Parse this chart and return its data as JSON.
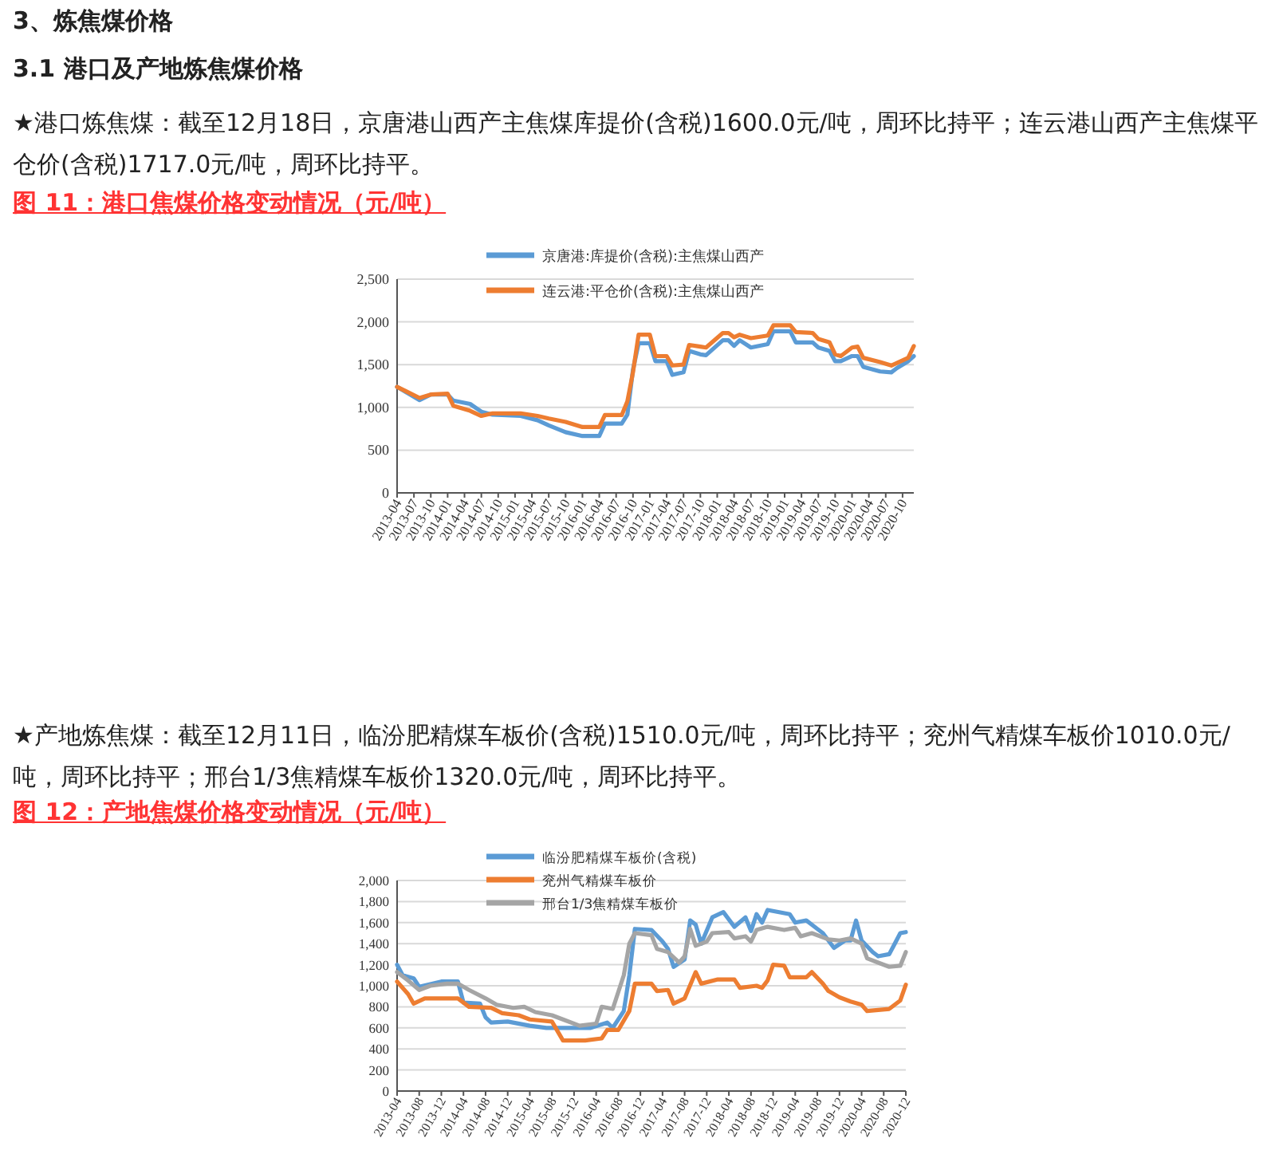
{
  "chart_data": [
    {
      "type": "line",
      "title": "图 11：港口焦煤价格变动情况（元/吨）",
      "annotations": [
        "3、炼焦煤价格",
        "3.1 港口及产地炼焦煤价格",
        "★港口炼焦煤：截至12月18日，京唐港山西产主焦煤库提价(含税)1600.0元/吨，周环比持平；连云港山西产主焦煤平仓价(含税)1717.0元/吨，周环比持平。"
      ],
      "xlim": [
        "2013-04",
        "2020-12"
      ],
      "xticks": [
        "2013-04",
        "2013-07",
        "2013-10",
        "2014-01",
        "2014-04",
        "2014-07",
        "2014-10",
        "2015-01",
        "2015-04",
        "2015-07",
        "2015-10",
        "2016-01",
        "2016-04",
        "2016-07",
        "2016-10",
        "2017-01",
        "2017-04",
        "2017-07",
        "2017-10",
        "2018-01",
        "2018-04",
        "2018-07",
        "2018-10",
        "2019-01",
        "2019-04",
        "2019-07",
        "2019-10",
        "2020-01",
        "2020-04",
        "2020-07",
        "2020-10"
      ],
      "ylim": [
        0,
        2500
      ],
      "yticks": [
        {
          "value": 0,
          "label": "0"
        },
        {
          "value": 500,
          "label": "500"
        },
        {
          "value": 1000,
          "label": "1,000"
        },
        {
          "value": 1500,
          "label": "1,500"
        },
        {
          "value": 2000,
          "label": "2,000"
        },
        {
          "value": 2500,
          "label": "2,500"
        }
      ],
      "grid": "y",
      "legend": "top",
      "series": [
        {
          "name": "京唐港:库提价(含税):主焦煤山西产",
          "color": "#5b9bd5",
          "x": [
            "2013-04",
            "2013-08",
            "2013-10",
            "2014-01",
            "2014-02",
            "2014-05",
            "2014-07",
            "2014-09",
            "2015-02",
            "2015-05",
            "2015-07",
            "2015-10",
            "2016-01",
            "2016-04",
            "2016-05",
            "2016-08",
            "2016-09",
            "2016-10",
            "2016-11",
            "2017-01",
            "2017-02",
            "2017-04",
            "2017-05",
            "2017-07",
            "2017-08",
            "2017-10",
            "2017-11",
            "2018-02",
            "2018-03",
            "2018-04",
            "2018-05",
            "2018-07",
            "2018-10",
            "2018-11",
            "2019-02",
            "2019-03",
            "2019-06",
            "2019-07",
            "2019-09",
            "2019-10",
            "2019-11",
            "2020-01",
            "2020-02",
            "2020-03",
            "2020-06",
            "2020-08",
            "2020-09",
            "2020-11",
            "2020-12"
          ],
          "values": [
            1240,
            1085,
            1150,
            1150,
            1080,
            1040,
            950,
            915,
            900,
            850,
            790,
            710,
            665,
            665,
            810,
            810,
            915,
            1440,
            1750,
            1750,
            1540,
            1540,
            1380,
            1410,
            1660,
            1620,
            1610,
            1785,
            1785,
            1720,
            1785,
            1700,
            1740,
            1890,
            1890,
            1760,
            1760,
            1700,
            1660,
            1540,
            1540,
            1600,
            1600,
            1475,
            1420,
            1410,
            1460,
            1540,
            1600
          ]
        },
        {
          "name": "连云港:平仓价(含税):主焦煤山西产",
          "color": "#ed7d31",
          "x": [
            "2013-04",
            "2013-08",
            "2013-10",
            "2014-01",
            "2014-02",
            "2014-05",
            "2014-07",
            "2014-09",
            "2015-02",
            "2015-05",
            "2015-07",
            "2015-10",
            "2016-01",
            "2016-04",
            "2016-05",
            "2016-08",
            "2016-09",
            "2016-10",
            "2016-11",
            "2017-01",
            "2017-02",
            "2017-04",
            "2017-05",
            "2017-07",
            "2017-08",
            "2017-10",
            "2017-11",
            "2018-02",
            "2018-03",
            "2018-04",
            "2018-05",
            "2018-07",
            "2018-10",
            "2018-11",
            "2019-02",
            "2019-03",
            "2019-06",
            "2019-07",
            "2019-09",
            "2019-10",
            "2019-11",
            "2020-01",
            "2020-02",
            "2020-03",
            "2020-06",
            "2020-08",
            "2020-09",
            "2020-11",
            "2020-12"
          ],
          "values": [
            1240,
            1110,
            1150,
            1160,
            1020,
            960,
            900,
            930,
            930,
            900,
            870,
            830,
            770,
            770,
            910,
            910,
            1070,
            1410,
            1850,
            1850,
            1600,
            1600,
            1490,
            1500,
            1730,
            1710,
            1700,
            1870,
            1870,
            1820,
            1850,
            1810,
            1840,
            1960,
            1960,
            1880,
            1870,
            1800,
            1760,
            1620,
            1600,
            1700,
            1710,
            1580,
            1530,
            1490,
            1520,
            1580,
            1717
          ]
        }
      ]
    },
    {
      "type": "line",
      "title": "图 12：产地焦煤价格变动情况（元/吨）",
      "annotations": [
        "★产地炼焦煤：截至12月11日，临汾肥精煤车板价(含税)1510.0元/吨，周环比持平；兖州气精煤车板价1010.0元/吨，周环比持平；邢台1/3焦精煤车板价1320.0元/吨，周环比持平。"
      ],
      "xlim": [
        "2013-04",
        "2020-12"
      ],
      "xticks": [
        "2013-04",
        "2013-08",
        "2013-12",
        "2014-04",
        "2014-08",
        "2014-12",
        "2015-04",
        "2015-08",
        "2015-12",
        "2016-04",
        "2016-08",
        "2016-12",
        "2017-04",
        "2017-08",
        "2017-12",
        "2018-04",
        "2018-08",
        "2018-12",
        "2019-04",
        "2019-08",
        "2019-12",
        "2020-04",
        "2020-08",
        "2020-12"
      ],
      "ylim": [
        0,
        2000
      ],
      "yticks": [
        {
          "value": 0,
          "label": "0"
        },
        {
          "value": 200,
          "label": "200"
        },
        {
          "value": 400,
          "label": "400"
        },
        {
          "value": 600,
          "label": "600"
        },
        {
          "value": 800,
          "label": "800"
        },
        {
          "value": 1000,
          "label": "1,000"
        },
        {
          "value": 1200,
          "label": "1,200"
        },
        {
          "value": 1400,
          "label": "1,400"
        },
        {
          "value": 1600,
          "label": "1,600"
        },
        {
          "value": 1800,
          "label": "1,800"
        },
        {
          "value": 2000,
          "label": "2,000"
        }
      ],
      "grid": "y",
      "legend": "top",
      "series": [
        {
          "name": "临汾肥精煤车板价(含税)",
          "color": "#5b9bd5",
          "x": [
            "2013-04",
            "2013-05",
            "2013-07",
            "2013-08",
            "2013-12",
            "2014-03",
            "2014-04",
            "2014-07",
            "2014-08",
            "2014-09",
            "2014-12",
            "2015-04",
            "2015-07",
            "2016-03",
            "2016-06",
            "2016-07",
            "2016-09",
            "2016-10",
            "2016-11",
            "2017-02",
            "2017-04",
            "2017-05",
            "2017-06",
            "2017-08",
            "2017-09",
            "2017-10",
            "2017-11",
            "2018-01",
            "2018-03",
            "2018-05",
            "2018-07",
            "2018-08",
            "2018-09",
            "2018-10",
            "2018-11",
            "2019-03",
            "2019-04",
            "2019-06",
            "2019-08",
            "2019-09",
            "2019-11",
            "2020-01",
            "2020-02",
            "2020-03",
            "2020-04",
            "2020-06",
            "2020-07",
            "2020-09",
            "2020-10",
            "2020-11",
            "2020-12"
          ],
          "values": [
            1200,
            1100,
            1070,
            990,
            1040,
            1040,
            840,
            830,
            700,
            650,
            660,
            620,
            600,
            600,
            650,
            600,
            760,
            1100,
            1540,
            1530,
            1420,
            1350,
            1180,
            1250,
            1620,
            1580,
            1400,
            1650,
            1700,
            1560,
            1650,
            1520,
            1680,
            1600,
            1720,
            1680,
            1600,
            1620,
            1540,
            1500,
            1360,
            1430,
            1430,
            1620,
            1430,
            1320,
            1280,
            1300,
            1400,
            1500,
            1510
          ]
        },
        {
          "name": "兖州气精煤车板价",
          "color": "#ed7d31",
          "x": [
            "2013-04",
            "2013-06",
            "2013-07",
            "2013-09",
            "2014-03",
            "2014-05",
            "2014-09",
            "2014-11",
            "2015-02",
            "2015-04",
            "2015-08",
            "2015-10",
            "2016-02",
            "2016-05",
            "2016-06",
            "2016-08",
            "2016-10",
            "2016-11",
            "2017-02",
            "2017-03",
            "2017-05",
            "2017-06",
            "2017-08",
            "2017-10",
            "2017-11",
            "2018-02",
            "2018-05",
            "2018-06",
            "2018-09",
            "2018-10",
            "2018-11",
            "2018-12",
            "2019-02",
            "2019-03",
            "2019-06",
            "2019-07",
            "2019-09",
            "2019-10",
            "2019-12",
            "2020-02",
            "2020-04",
            "2020-05",
            "2020-09",
            "2020-11",
            "2020-12"
          ],
          "values": [
            1040,
            920,
            830,
            880,
            880,
            800,
            790,
            740,
            720,
            680,
            660,
            480,
            480,
            500,
            580,
            580,
            760,
            1020,
            1020,
            950,
            960,
            830,
            880,
            1130,
            1020,
            1060,
            1060,
            980,
            1000,
            980,
            1050,
            1200,
            1190,
            1080,
            1080,
            1130,
            1020,
            950,
            890,
            850,
            820,
            760,
            780,
            860,
            1010
          ]
        },
        {
          "name": "邢台1/3焦精煤车板价",
          "color": "#a5a5a5",
          "x": [
            "2013-04",
            "2013-06",
            "2013-08",
            "2013-10",
            "2014-01",
            "2014-03",
            "2014-05",
            "2014-08",
            "2014-10",
            "2015-01",
            "2015-03",
            "2015-05",
            "2015-08",
            "2015-10",
            "2016-01",
            "2016-04",
            "2016-05",
            "2016-07",
            "2016-09",
            "2016-10",
            "2016-11",
            "2017-02",
            "2017-03",
            "2017-05",
            "2017-07",
            "2017-08",
            "2017-09",
            "2017-10",
            "2017-12",
            "2018-01",
            "2018-04",
            "2018-05",
            "2018-07",
            "2018-08",
            "2018-09",
            "2018-11",
            "2019-02",
            "2019-04",
            "2019-05",
            "2019-07",
            "2019-10",
            "2019-12",
            "2020-02",
            "2020-04",
            "2020-05",
            "2020-07",
            "2020-09",
            "2020-11",
            "2020-12"
          ],
          "values": [
            1130,
            1050,
            960,
            1000,
            1020,
            1020,
            960,
            880,
            820,
            790,
            800,
            750,
            720,
            680,
            620,
            640,
            800,
            780,
            1100,
            1400,
            1500,
            1480,
            1350,
            1320,
            1220,
            1280,
            1540,
            1380,
            1420,
            1500,
            1510,
            1450,
            1470,
            1420,
            1530,
            1560,
            1530,
            1550,
            1470,
            1500,
            1440,
            1430,
            1450,
            1400,
            1260,
            1220,
            1180,
            1190,
            1320
          ]
        }
      ]
    }
  ]
}
